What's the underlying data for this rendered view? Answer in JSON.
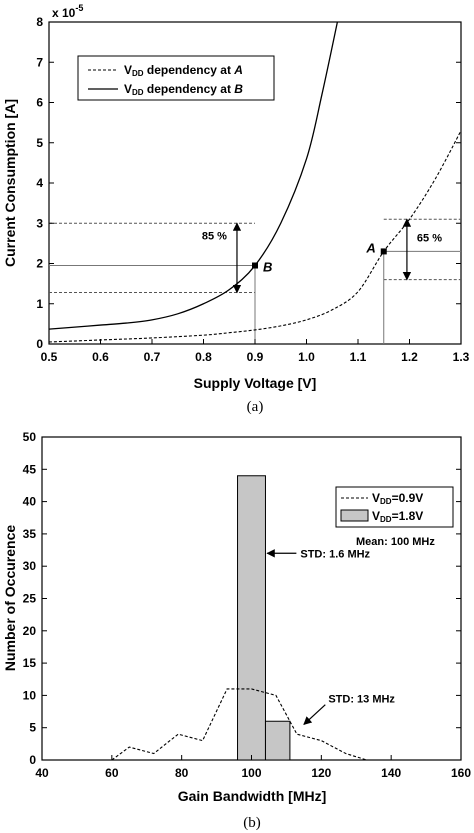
{
  "chart_data": [
    {
      "type": "line",
      "xlabel": "Supply Voltage [V]",
      "ylabel": "Current Consumption [A]",
      "y_multiplier": "x 10",
      "y_multiplier_exp": "-5",
      "xlim": [
        0.5,
        1.3
      ],
      "ylim": [
        0,
        8
      ],
      "xticks": [
        "0.5",
        "0.6",
        "0.7",
        "0.8",
        "0.9",
        "1.0",
        "1.1",
        "1.2",
        "1.3"
      ],
      "yticks": [
        "0",
        "1",
        "2",
        "3",
        "4",
        "5",
        "6",
        "7",
        "8"
      ],
      "legend": {
        "position": "top-left",
        "entries": [
          {
            "style": "dashed",
            "text_main": "V",
            "text_sub": "DD",
            "text_rest": " dependency at ",
            "text_var": "A"
          },
          {
            "style": "solid",
            "text_main": "V",
            "text_sub": "DD",
            "text_rest": " dependency at ",
            "text_var": "B"
          }
        ]
      },
      "series": [
        {
          "style": "dashed",
          "x": [
            0.5,
            0.6,
            0.7,
            0.8,
            0.85,
            0.9,
            0.95,
            1.0,
            1.05,
            1.1,
            1.15,
            1.2,
            1.25,
            1.3
          ],
          "y": [
            0.05,
            0.1,
            0.15,
            0.22,
            0.28,
            0.35,
            0.45,
            0.6,
            0.85,
            1.3,
            2.3,
            3.1,
            4.1,
            5.3
          ]
        },
        {
          "style": "solid",
          "x": [
            0.5,
            0.55,
            0.6,
            0.65,
            0.7,
            0.75,
            0.8,
            0.85,
            0.9,
            0.95,
            1.0,
            1.03,
            1.06
          ],
          "y": [
            0.37,
            0.42,
            0.47,
            0.52,
            0.6,
            0.75,
            1.0,
            1.35,
            1.95,
            3.0,
            4.6,
            6.2,
            8.0
          ]
        }
      ],
      "points": [
        {
          "label": "A",
          "x": 1.15,
          "y": 2.3
        },
        {
          "label": "B",
          "x": 0.9,
          "y": 1.95
        }
      ],
      "hlines": [
        {
          "y": 3.0,
          "x_from": 0.5,
          "x_to": 0.9,
          "style": "dashed"
        },
        {
          "y": 1.95,
          "x_from": 0.5,
          "x_to": 0.9,
          "style": "solid"
        },
        {
          "y": 1.28,
          "x_from": 0.5,
          "x_to": 0.9,
          "style": "dashed"
        },
        {
          "y": 3.1,
          "x_from": 1.15,
          "x_to": 1.3,
          "style": "dashed"
        },
        {
          "y": 2.3,
          "x_from": 1.15,
          "x_to": 1.3,
          "style": "solid"
        },
        {
          "y": 1.6,
          "x_from": 1.15,
          "x_to": 1.3,
          "style": "dashed"
        }
      ],
      "vlines": [
        {
          "x": 0.9,
          "y_from": 0,
          "y_to": 1.95
        },
        {
          "x": 1.15,
          "y_from": 0,
          "y_to": 2.3
        }
      ],
      "arrows": [
        {
          "x": 0.865,
          "y_from": 1.28,
          "y_to": 3.0,
          "label": "85 %"
        },
        {
          "x": 1.195,
          "y_from": 1.6,
          "y_to": 3.1,
          "label": "65 %"
        }
      ],
      "grid": false,
      "caption": "(a)"
    },
    {
      "type": "bar",
      "xlabel": "Gain Bandwidth [MHz]",
      "ylabel": "Number of Occurence",
      "xlim": [
        40,
        160
      ],
      "ylim": [
        0,
        50
      ],
      "xticks": [
        "40",
        "60",
        "80",
        "100",
        "120",
        "140",
        "160"
      ],
      "yticks": [
        "0",
        "5",
        "10",
        "15",
        "20",
        "25",
        "30",
        "35",
        "40",
        "45",
        "50"
      ],
      "legend": {
        "position": "top-right",
        "entries": [
          {
            "style": "dashed",
            "text_main": "V",
            "text_sub": "DD",
            "text_rest": "=0.9V"
          },
          {
            "style": "bar",
            "text_main": "V",
            "text_sub": "DD",
            "text_rest": "=1.8V"
          }
        ]
      },
      "mean_text": "Mean: 100 MHz",
      "bars": [
        {
          "x_from": 96,
          "x_to": 104,
          "value": 44
        },
        {
          "x_from": 104,
          "x_to": 111,
          "value": 6
        }
      ],
      "dashed_series": {
        "x": [
          60,
          65,
          72,
          79,
          86,
          93,
          100,
          107,
          113,
          120,
          127,
          133
        ],
        "y": [
          0,
          2,
          1,
          4,
          3,
          11,
          11,
          10,
          4,
          3,
          1,
          0
        ]
      },
      "annotations": [
        {
          "text": "STD: 1.6 MHz",
          "x": 114,
          "y": 32,
          "arrow_to_x": 104.5,
          "arrow_to_y": 32
        },
        {
          "text": "STD: 13 MHz",
          "x": 122,
          "y": 9.5,
          "arrow_to_x": 115,
          "arrow_to_y": 5.5
        }
      ],
      "grid": false,
      "caption": "(b)"
    }
  ]
}
